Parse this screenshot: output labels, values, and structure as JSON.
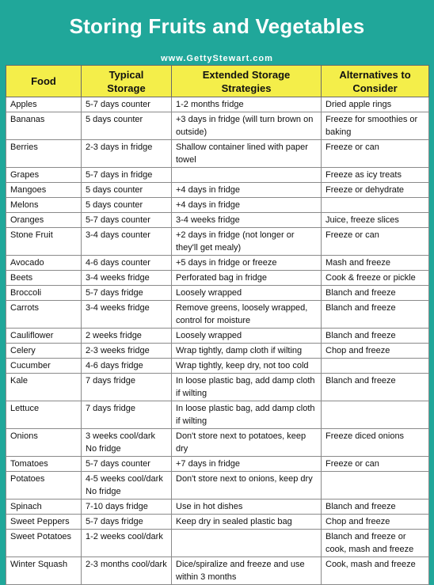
{
  "header": {
    "title": "Storing Fruits and Vegetables",
    "website": "www.GettyStewart.com"
  },
  "table": {
    "columns": [
      "Food",
      "Typical\nStorage",
      "Extended Storage\nStrategies",
      "Alternatives to\nConsider"
    ],
    "rows": [
      [
        "Apples",
        "5-7 days counter",
        "1-2 months fridge",
        "Dried apple rings"
      ],
      [
        "Bananas",
        "5 days counter",
        "+3 days in fridge (will turn brown on outside)",
        "Freeze for smoothies or baking"
      ],
      [
        "Berries",
        "2-3 days in fridge",
        "Shallow container lined with paper towel",
        "Freeze or can"
      ],
      [
        "Grapes",
        "5-7 days in fridge",
        "",
        "Freeze as icy treats"
      ],
      [
        "Mangoes",
        "5 days counter",
        "+4 days in fridge",
        "Freeze or dehydrate"
      ],
      [
        "Melons",
        "5 days counter",
        "+4 days in fridge",
        ""
      ],
      [
        "Oranges",
        "5-7 days counter",
        "3-4 weeks fridge",
        "Juice, freeze slices"
      ],
      [
        "Stone Fruit",
        "3-4 days counter",
        "+2 days in fridge (not longer or they'll get mealy)",
        "Freeze or can"
      ],
      [
        "Avocado",
        "4-6 days counter",
        "+5 days in fridge or freeze",
        "Mash and freeze"
      ],
      [
        "Beets",
        "3-4 weeks fridge",
        "Perforated bag in fridge",
        "Cook & freeze or pickle"
      ],
      [
        "Broccoli",
        "5-7 days fridge",
        "Loosely wrapped",
        "Blanch and freeze"
      ],
      [
        "Carrots",
        "3-4 weeks fridge",
        "Remove greens, loosely wrapped, control for moisture",
        "Blanch and freeze"
      ],
      [
        "Cauliflower",
        "2 weeks fridge",
        "Loosely wrapped",
        "Blanch and freeze"
      ],
      [
        "Celery",
        "2-3 weeks fridge",
        "Wrap tightly, damp cloth if wilting",
        "Chop and freeze"
      ],
      [
        "Cucumber",
        "4-6 days fridge",
        "Wrap tightly, keep dry, not too cold",
        ""
      ],
      [
        "Kale",
        "7 days fridge",
        "In loose plastic bag, add damp cloth if wilting",
        "Blanch and freeze"
      ],
      [
        "Lettuce",
        "7 days fridge",
        "In loose plastic bag, add damp cloth if wilting",
        ""
      ],
      [
        "Onions",
        "3 weeks cool/dark No fridge",
        "Don't store next to potatoes, keep dry",
        "Freeze diced onions"
      ],
      [
        "Tomatoes",
        "5-7 days counter",
        "+7 days in fridge",
        "Freeze or can"
      ],
      [
        "Potatoes",
        "4-5 weeks cool/dark No fridge",
        "Don't store next to onions, keep dry",
        ""
      ],
      [
        "Spinach",
        "7-10 days fridge",
        "Use in hot dishes",
        "Blanch and freeze"
      ],
      [
        "Sweet Peppers",
        "5-7 days fridge",
        "Keep dry in sealed plastic bag",
        "Chop and freeze"
      ],
      [
        "Sweet Potatoes",
        "1-2 weeks cool/dark",
        "",
        "Blanch and freeze or cook, mash and freeze"
      ],
      [
        "Winter Squash",
        "2-3 months cool/dark",
        "Dice/spiralize and freeze and use within 3 months",
        "Cook, mash and freeze"
      ]
    ]
  },
  "colors": {
    "background": "#20a79a",
    "header_fill": "#f4ee4a",
    "title_text": "#ffffff"
  }
}
